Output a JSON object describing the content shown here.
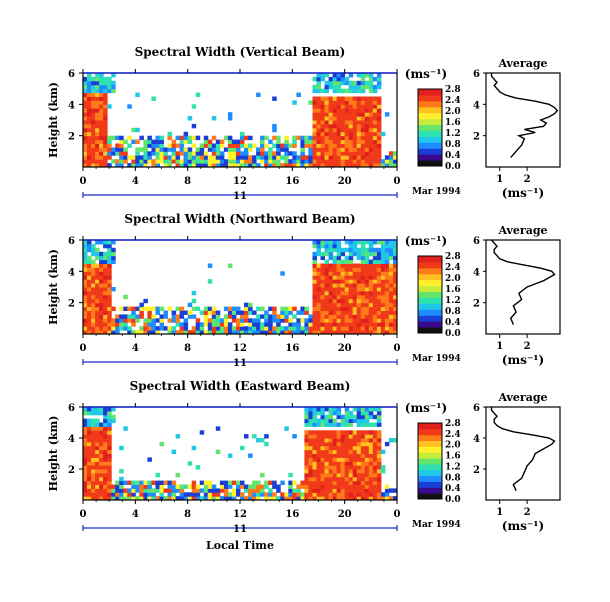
{
  "figure": {
    "x_axis_title": "Local Time",
    "day_label": "11",
    "date_label": "Mar 1994",
    "colorbar_unit": "(ms⁻¹)",
    "profile_title": "Average",
    "profile_unit": "(ms⁻¹)",
    "height_label": "Height (km)"
  },
  "colors": {
    "scale": [
      "#111111",
      "#3b0a8c",
      "#1a3fd6",
      "#1f8cff",
      "#21c7e8",
      "#2fe0b0",
      "#62e56a",
      "#c6ec3c",
      "#fff12c",
      "#ffc020",
      "#ff7a18",
      "#f03a1a",
      "#e0201c"
    ],
    "axis": "#000000",
    "axis_blue": "#1a2bd0"
  },
  "chart_data": [
    {
      "type": "heatmap",
      "title": "Spectral Width (Vertical Beam)",
      "xlabel": "Local Time",
      "ylabel": "Height (km)",
      "xlim": [
        0,
        24
      ],
      "ylim": [
        0,
        6
      ],
      "x_ticks": [
        "0",
        "4",
        "8",
        "12",
        "16",
        "20",
        "0"
      ],
      "y_ticks": [
        "2",
        "4",
        "6"
      ],
      "colorbar": {
        "unit": "(ms⁻¹)",
        "range": [
          0.0,
          2.8
        ],
        "ticks": [
          "0.0",
          "0.4",
          "0.8",
          "1.2",
          "1.6",
          "2.0",
          "2.4",
          "2.8"
        ]
      },
      "regions": [
        {
          "x_range": [
            0,
            1.7
          ],
          "top_km": 4.6,
          "level": "high",
          "value_ms": 2.6
        },
        {
          "x_range": [
            1.7,
            17.5
          ],
          "top_km": 1.9,
          "level": "mixed",
          "value_ms": 1.4
        },
        {
          "x_range": [
            17.5,
            22.5
          ],
          "top_km": 4.5,
          "level": "high",
          "value_ms": 2.7
        },
        {
          "x_range": [
            22.5,
            24
          ],
          "top_km": 0.8,
          "level": "mixed",
          "value_ms": 1.4
        }
      ],
      "upper_band": {
        "range_km": [
          4.6,
          6
        ],
        "level": "low",
        "value_ms": 0.9
      },
      "profile": {
        "title": "Average",
        "xlabel": "(ms⁻¹)",
        "x_ticks": [
          "1",
          "2"
        ],
        "y_ticks": [
          "2",
          "4",
          "6"
        ],
        "xlim": [
          0.5,
          3.2
        ],
        "height_km": [
          0.6,
          1.0,
          1.4,
          1.8,
          2.0,
          2.2,
          2.4,
          2.6,
          2.8,
          3.0,
          3.2,
          3.4,
          3.6,
          3.8,
          4.0,
          4.2,
          4.4,
          4.6,
          4.8,
          5.0,
          5.2,
          5.4,
          5.6,
          5.8,
          6.0
        ],
        "width_ms": [
          1.4,
          1.6,
          1.8,
          1.9,
          1.7,
          2.3,
          1.9,
          2.6,
          2.7,
          2.5,
          2.8,
          3.0,
          3.1,
          3.0,
          2.8,
          2.3,
          1.6,
          1.2,
          1.0,
          0.9,
          0.8,
          0.9,
          0.8,
          0.7,
          0.7
        ]
      }
    },
    {
      "type": "heatmap",
      "title": "Spectral Width (Northward Beam)",
      "xlabel": "Local Time",
      "ylabel": "Height (km)",
      "xlim": [
        0,
        24
      ],
      "ylim": [
        0,
        6
      ],
      "x_ticks": [
        "0",
        "4",
        "8",
        "12",
        "16",
        "20",
        "0"
      ],
      "y_ticks": [
        "2",
        "4",
        "6"
      ],
      "colorbar": {
        "unit": "(ms⁻¹)",
        "range": [
          0.0,
          2.8
        ],
        "ticks": [
          "0.0",
          "0.4",
          "0.8",
          "1.2",
          "1.6",
          "2.0",
          "2.4",
          "2.8"
        ]
      },
      "regions": [
        {
          "x_range": [
            0,
            2.1
          ],
          "top_km": 4.5,
          "level": "high",
          "value_ms": 2.6
        },
        {
          "x_range": [
            2.1,
            17.3
          ],
          "top_km": 1.6,
          "level": "mixed",
          "value_ms": 1.3
        },
        {
          "x_range": [
            17.3,
            24
          ],
          "top_km": 4.5,
          "level": "high",
          "value_ms": 2.6
        }
      ],
      "upper_band": {
        "range_km": [
          4.5,
          6
        ],
        "level": "low",
        "value_ms": 0.9
      },
      "profile": {
        "title": "Average",
        "xlabel": "(ms⁻¹)",
        "x_ticks": [
          "1",
          "2"
        ],
        "y_ticks": [
          "2",
          "4",
          "6"
        ],
        "xlim": [
          0.5,
          3.2
        ],
        "height_km": [
          0.6,
          1.0,
          1.4,
          1.8,
          2.2,
          2.6,
          3.0,
          3.2,
          3.4,
          3.6,
          3.8,
          4.0,
          4.2,
          4.4,
          4.6,
          4.8,
          5.0,
          5.2,
          5.4,
          5.6,
          5.8,
          6.0
        ],
        "width_ms": [
          1.5,
          1.4,
          1.6,
          1.5,
          1.8,
          1.7,
          2.0,
          2.3,
          2.6,
          2.8,
          3.0,
          2.9,
          2.5,
          1.9,
          1.3,
          1.0,
          0.9,
          0.8,
          0.8,
          0.9,
          0.8,
          0.7
        ]
      }
    },
    {
      "type": "heatmap",
      "title": "Spectral Width (Eastward Beam)",
      "xlabel": "Local Time",
      "ylabel": "Height (km)",
      "xlim": [
        0,
        24
      ],
      "ylim": [
        0,
        6
      ],
      "x_ticks": [
        "0",
        "4",
        "8",
        "12",
        "16",
        "20",
        "0"
      ],
      "y_ticks": [
        "2",
        "4",
        "6"
      ],
      "colorbar": {
        "unit": "(ms⁻¹)",
        "range": [
          0.0,
          2.8
        ],
        "ticks": [
          "0.0",
          "0.4",
          "0.8",
          "1.2",
          "1.6",
          "2.0",
          "2.4",
          "2.8"
        ]
      },
      "regions": [
        {
          "x_range": [
            0,
            1.9
          ],
          "top_km": 4.6,
          "level": "high",
          "value_ms": 2.6
        },
        {
          "x_range": [
            1.9,
            16.8
          ],
          "top_km": 1.2,
          "level": "mixed",
          "value_ms": 1.3
        },
        {
          "x_range": [
            16.8,
            22.7
          ],
          "top_km": 4.5,
          "level": "high",
          "value_ms": 2.6
        },
        {
          "x_range": [
            22.7,
            24
          ],
          "top_km": 1.0,
          "level": "mixed",
          "value_ms": 1.3
        }
      ],
      "upper_band": {
        "range_km": [
          4.6,
          6
        ],
        "level": "low",
        "value_ms": 0.9
      },
      "profile": {
        "title": "Average",
        "xlabel": "(ms⁻¹)",
        "x_ticks": [
          "1",
          "2"
        ],
        "y_ticks": [
          "2",
          "4",
          "6"
        ],
        "xlim": [
          0.5,
          3.2
        ],
        "height_km": [
          0.6,
          1.0,
          1.4,
          1.8,
          2.2,
          2.6,
          3.0,
          3.2,
          3.4,
          3.6,
          3.8,
          4.0,
          4.2,
          4.4,
          4.6,
          4.8,
          5.0,
          5.2,
          5.4,
          5.6,
          5.8,
          6.0
        ],
        "width_ms": [
          1.6,
          1.5,
          1.8,
          1.9,
          2.0,
          2.2,
          2.3,
          2.5,
          2.7,
          2.9,
          3.0,
          2.8,
          2.2,
          1.5,
          1.1,
          0.9,
          0.8,
          0.8,
          0.9,
          0.8,
          0.7,
          0.7
        ]
      }
    }
  ]
}
